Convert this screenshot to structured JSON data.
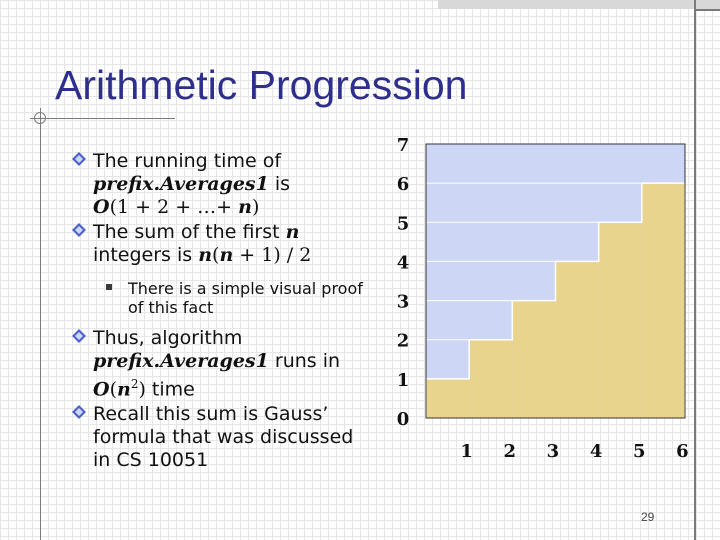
{
  "slide": {
    "title": "Arithmetic Progression",
    "page_number": "29"
  },
  "bullets": {
    "b1": {
      "line1": "The running time of",
      "code": "prefix.Averages1",
      "is": " is",
      "big_o": "O",
      "expr": "(1 + 2 + …+ ",
      "n": "n",
      "close": ")"
    },
    "b2": {
      "line1_prefix": "The sum of the first ",
      "n": "n",
      "line2_prefix": "integers is ",
      "expr_n1": "n",
      "expr_mid": "(",
      "expr_n2": "n",
      "expr_tail": " + 1) / 2"
    },
    "b2_sub": "There is a simple visual proof of this fact",
    "b3": {
      "line1": "Thus, algorithm",
      "code": "prefix.Averages1",
      "runs_in": " runs in",
      "big_o": "O",
      "open": "(",
      "n": "n",
      "sup": "2",
      "close": ")",
      "time": " time"
    },
    "b4": "Recall this sum is Gauss’ formula that was discussed in CS 10051"
  },
  "colors": {
    "title": "#2e2e8c",
    "bar_fill": "#e8d48c",
    "background_fill": "#cdd6f4",
    "chart_border": "#333333"
  },
  "chart_data": {
    "type": "bar",
    "categories": [
      "1",
      "2",
      "3",
      "4",
      "5",
      "6"
    ],
    "values": [
      1,
      2,
      3,
      4,
      5,
      6
    ],
    "y_ticks": [
      "0",
      "1",
      "2",
      "3",
      "4",
      "5",
      "6",
      "7"
    ],
    "ylim": [
      0,
      7
    ],
    "grid": true,
    "title": "",
    "xlabel": "",
    "ylabel": ""
  }
}
